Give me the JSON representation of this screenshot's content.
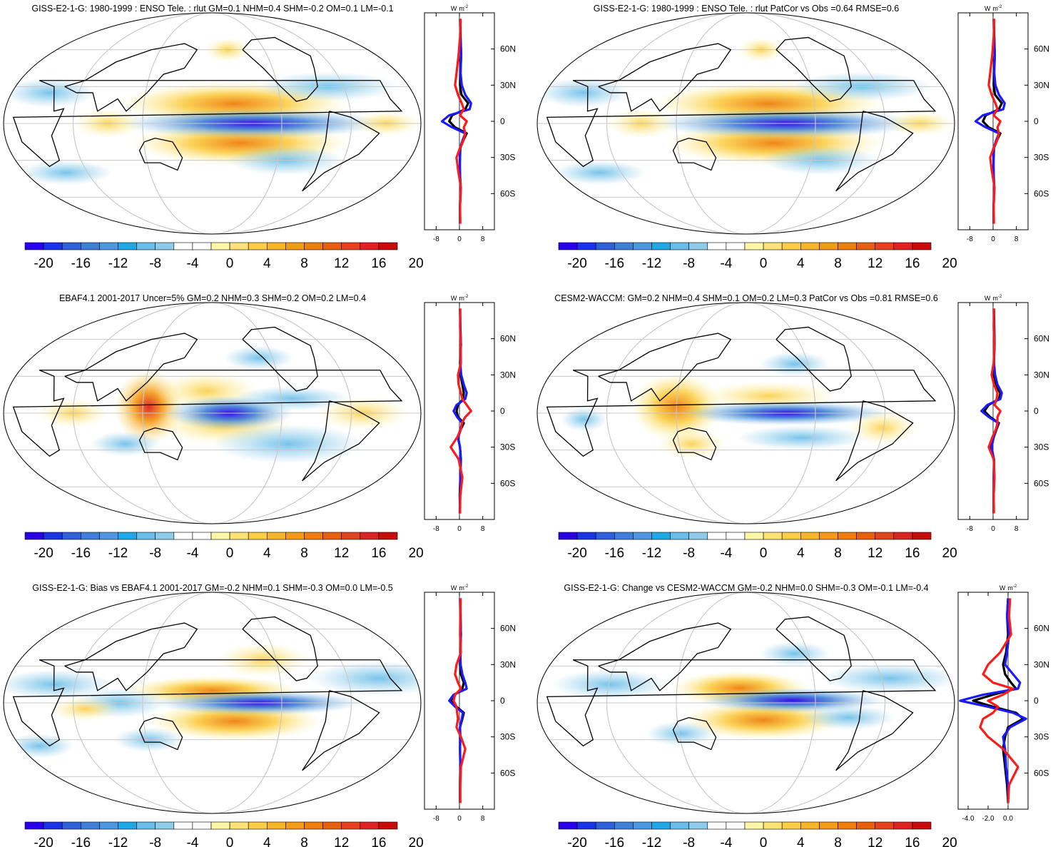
{
  "figure": {
    "unit_main": "W",
    "unit_sup": "m",
    "unit_exp": "-2"
  },
  "colorbar": {
    "tick_labels": [
      "-20",
      "-16",
      "-12",
      "-8",
      "-4",
      "0",
      "4",
      "8",
      "12",
      "16",
      "20"
    ],
    "colors": [
      "#2a00e8",
      "#1b33e6",
      "#2f5fd9",
      "#3f7fd8",
      "#4d97e0",
      "#20a8e6",
      "#68bde9",
      "#8dcbe8",
      "#ffffff",
      "#ffffff",
      "#fff6a8",
      "#fde377",
      "#fbcd45",
      "#f7b52a",
      "#f39a16",
      "#ee7f0e",
      "#e8600e",
      "#e4421c",
      "#dd2222",
      "#c80b0b"
    ]
  },
  "colors": {
    "black_line": "#000000",
    "blue_line": "#1a1aff",
    "red_line": "#ff1a1a",
    "grid": "#c8c8c8"
  },
  "chart_data": [
    {
      "type": "heatmap",
      "title": "GISS-E2-1-G: 1980-1999 : ENSO Tele. : rlut GM=0.1 NHM=0.4 SHM=-0.2 OM=0.1 LM=-0.1",
      "zonal_profile": {
        "x_ticks": [
          "-8",
          "0",
          "8"
        ],
        "x_range": [
          -12,
          12
        ],
        "y_ticks": [
          "60N",
          "30N",
          "0",
          "30S",
          "60S"
        ],
        "y_range": [
          -90,
          90
        ],
        "lat": [
          85,
          70,
          55,
          40,
          30,
          22,
          15,
          10,
          5,
          0,
          -5,
          -10,
          -15,
          -22,
          -30,
          -40,
          -55,
          -70,
          -85
        ],
        "series": [
          {
            "name": "black",
            "color": "#000000",
            "values": [
              0.3,
              0.4,
              0.6,
              0.3,
              0.2,
              0.7,
              3.0,
              2.0,
              -2.5,
              -3.5,
              -1.5,
              2.5,
              1.5,
              0.3,
              0.2,
              0.1,
              0.4,
              0.2,
              0.2
            ]
          },
          {
            "name": "blue",
            "color": "#1a1aff",
            "values": [
              0.2,
              0.3,
              0.6,
              0.4,
              0.8,
              2.0,
              4.0,
              3.5,
              -3.5,
              -6.0,
              -2.5,
              2.0,
              1.2,
              0.2,
              0.1,
              0.2,
              0.3,
              0.2,
              0.2
            ]
          },
          {
            "name": "red",
            "color": "#ff1a1a",
            "values": [
              0.4,
              0.2,
              -0.3,
              -1.0,
              -1.5,
              -0.5,
              0.8,
              1.5,
              0.2,
              2.5,
              1.5,
              2.0,
              1.5,
              0.2,
              -1.0,
              -0.5,
              0.5,
              0.2,
              0.3
            ]
          }
        ]
      }
    },
    {
      "type": "heatmap",
      "title": "GISS-E2-1-G: 1980-1999 : ENSO Tele. : rlut PatCor vs Obs =0.64 RMSE=0.6",
      "zonal_profile": {
        "x_ticks": [
          "-8",
          "0",
          "8"
        ],
        "x_range": [
          -12,
          12
        ],
        "y_ticks": [
          "60N",
          "30N",
          "0",
          "30S",
          "60S"
        ],
        "y_range": [
          -90,
          90
        ],
        "lat": [
          85,
          70,
          55,
          40,
          30,
          22,
          15,
          10,
          5,
          0,
          -5,
          -10,
          -15,
          -22,
          -30,
          -40,
          -55,
          -70,
          -85
        ],
        "series": [
          {
            "name": "black",
            "color": "#000000",
            "values": [
              0.3,
              0.4,
              0.6,
              0.3,
              0.2,
              0.7,
              3.0,
              2.0,
              -2.5,
              -3.5,
              -1.5,
              2.5,
              1.5,
              0.3,
              0.2,
              0.1,
              0.4,
              0.2,
              0.2
            ]
          },
          {
            "name": "blue",
            "color": "#1a1aff",
            "values": [
              0.2,
              0.3,
              0.6,
              0.4,
              0.8,
              2.0,
              4.0,
              3.5,
              -3.5,
              -6.0,
              -2.5,
              2.0,
              1.2,
              0.2,
              0.1,
              0.2,
              0.3,
              0.2,
              0.2
            ]
          },
          {
            "name": "red",
            "color": "#ff1a1a",
            "values": [
              0.4,
              0.2,
              -0.3,
              -1.0,
              -1.5,
              -0.5,
              0.8,
              1.5,
              0.2,
              2.5,
              1.5,
              2.0,
              1.5,
              0.2,
              -1.0,
              -0.5,
              0.5,
              0.2,
              0.3
            ]
          }
        ]
      }
    },
    {
      "type": "heatmap",
      "title": "EBAF4.1 2001-2017 Uncer=5% GM=0.2 NHM=0.3 SHM=0.2 OM=0.2 LM=0.4",
      "zonal_profile": {
        "x_ticks": [
          "-8",
          "0",
          "8"
        ],
        "x_range": [
          -12,
          12
        ],
        "y_ticks": [
          "60N",
          "30N",
          "0",
          "30S",
          "60S"
        ],
        "y_range": [
          -90,
          90
        ],
        "lat": [
          85,
          70,
          55,
          40,
          30,
          22,
          15,
          10,
          5,
          0,
          -5,
          -10,
          -15,
          -22,
          -30,
          -40,
          -55,
          -70,
          -85
        ],
        "series": [
          {
            "name": "black",
            "color": "#000000",
            "values": [
              0.2,
              0.3,
              0.5,
              0.2,
              0.4,
              1.0,
              1.5,
              1.2,
              -0.5,
              -1.0,
              -0.5,
              1.5,
              0.5,
              -0.5,
              0.2,
              0.5,
              0.3,
              0.1,
              0.2
            ]
          },
          {
            "name": "blue",
            "color": "#1a1aff",
            "values": [
              0.2,
              0.3,
              0.5,
              0.3,
              0.6,
              1.5,
              2.5,
              2.0,
              -1.0,
              -2.0,
              -0.8,
              1.0,
              0.3,
              -0.5,
              0.2,
              0.4,
              0.3,
              0.2,
              0.1
            ]
          },
          {
            "name": "red",
            "color": "#ff1a1a",
            "values": [
              0.3,
              0.2,
              0.4,
              0.5,
              -0.5,
              -0.3,
              0.5,
              1.0,
              2.5,
              4.0,
              2.0,
              0.8,
              0.5,
              -0.8,
              -3.0,
              -0.3,
              1.0,
              0.3,
              0.2
            ]
          }
        ]
      }
    },
    {
      "type": "heatmap",
      "title": "CESM2-WACCM: GM=0.2 NHM=0.4 SHM=0.1 OM=0.2 LM=0.3 PatCor vs Obs =0.81 RMSE=0.6",
      "zonal_profile": {
        "x_ticks": [
          "-8",
          "0",
          "8"
        ],
        "x_range": [
          -12,
          12
        ],
        "y_ticks": [
          "60N",
          "30N",
          "0",
          "30S",
          "60S"
        ],
        "y_range": [
          -90,
          90
        ],
        "lat": [
          85,
          70,
          55,
          40,
          30,
          22,
          15,
          10,
          5,
          0,
          -5,
          -10,
          -15,
          -22,
          -30,
          -40,
          -55,
          -70,
          -85
        ],
        "series": [
          {
            "name": "black",
            "color": "#000000",
            "values": [
              0.3,
              0.4,
              0.5,
              0.3,
              0.3,
              0.8,
              2.5,
              2.0,
              -1.5,
              -3.0,
              -1.0,
              2.0,
              1.2,
              0.2,
              -0.8,
              0.3,
              0.3,
              0.2,
              0.2
            ]
          },
          {
            "name": "blue",
            "color": "#1a1aff",
            "values": [
              0.2,
              0.3,
              0.4,
              0.3,
              0.7,
              1.5,
              3.0,
              2.5,
              -2.0,
              -4.0,
              -1.5,
              1.8,
              1.0,
              0.2,
              -0.5,
              0.3,
              0.2,
              0.2,
              0.2
            ]
          },
          {
            "name": "red",
            "color": "#ff1a1a",
            "values": [
              0.3,
              0.2,
              0.4,
              0.2,
              -0.5,
              0.3,
              1.5,
              1.2,
              0.5,
              2.5,
              1.5,
              1.5,
              1.0,
              -0.3,
              -1.5,
              0.2,
              0.5,
              0.2,
              0.3
            ]
          }
        ]
      }
    },
    {
      "type": "heatmap",
      "title": "GISS-E2-1-G: Bias vs EBAF4.1 2001-2017 GM=-0.2 NHM=0.1 SHM=-0.3 OM=0.0 LM=-0.5",
      "zonal_profile": {
        "x_ticks": [
          "-8",
          "0",
          "8"
        ],
        "x_range": [
          -12,
          12
        ],
        "y_ticks": [
          "60N",
          "30N",
          "0",
          "30S",
          "60S"
        ],
        "y_range": [
          -90,
          90
        ],
        "lat": [
          85,
          70,
          55,
          40,
          30,
          22,
          15,
          10,
          5,
          0,
          -5,
          -10,
          -15,
          -22,
          -30,
          -40,
          -55,
          -70,
          -85
        ],
        "series": [
          {
            "name": "black",
            "color": "#000000",
            "values": [
              0.3,
              0.4,
              0.5,
              0.3,
              0.2,
              0.5,
              1.5,
              1.0,
              -1.5,
              -3.0,
              -1.0,
              1.5,
              1.0,
              0.2,
              0.3,
              0.2,
              0.3,
              0.2,
              0.2
            ]
          },
          {
            "name": "blue",
            "color": "#1a1aff",
            "values": [
              0.2,
              0.3,
              0.5,
              0.3,
              0.4,
              1.0,
              2.0,
              2.5,
              -2.0,
              -3.5,
              -1.5,
              1.2,
              0.8,
              0.2,
              0.2,
              0.2,
              0.3,
              0.2,
              0.2
            ]
          },
          {
            "name": "red",
            "color": "#ff1a1a",
            "values": [
              0.4,
              0.3,
              0.2,
              0.5,
              -1.0,
              -1.5,
              -0.5,
              0.5,
              -1.5,
              -2.0,
              -1.0,
              -0.8,
              -0.5,
              -1.0,
              0.5,
              2.0,
              0.5,
              0.3,
              0.3
            ]
          }
        ]
      }
    },
    {
      "type": "heatmap",
      "title": "GISS-E2-1-G: Change vs CESM2-WACCM GM=-0.2 NHM=0.0 SHM=-0.3 OM=-0.1 LM=-0.4",
      "zonal_profile": {
        "x_ticks": [
          "-4.0",
          "-2.0",
          "0.0"
        ],
        "x_range": [
          -5,
          2
        ],
        "y_ticks": [
          "60N",
          "30N",
          "0",
          "30S",
          "60S"
        ],
        "y_range": [
          -90,
          90
        ],
        "lat": [
          85,
          70,
          55,
          40,
          30,
          22,
          15,
          10,
          5,
          0,
          -5,
          -10,
          -15,
          -22,
          -30,
          -40,
          -55,
          -70,
          -85
        ],
        "series": [
          {
            "name": "black",
            "color": "#000000",
            "values": [
              0.0,
              -0.1,
              0.0,
              -0.2,
              -0.5,
              -0.3,
              0.3,
              0.8,
              -1.5,
              -3.5,
              -1.5,
              0.8,
              1.5,
              0.0,
              -0.3,
              -0.5,
              -0.3,
              -0.1,
              0.0
            ]
          },
          {
            "name": "blue",
            "color": "#1a1aff",
            "values": [
              0.0,
              -0.1,
              0.1,
              -0.1,
              -0.3,
              0.5,
              1.2,
              1.0,
              -2.5,
              -4.8,
              -2.0,
              0.5,
              1.8,
              0.2,
              -0.5,
              -0.3,
              -0.2,
              0.0,
              0.0
            ]
          },
          {
            "name": "red",
            "color": "#ff1a1a",
            "values": [
              0.2,
              0.1,
              0.3,
              -0.8,
              -2.0,
              -2.5,
              -1.5,
              0.5,
              -0.5,
              -2.0,
              -1.0,
              -1.5,
              -2.5,
              -2.8,
              -2.0,
              -0.5,
              1.0,
              0.1,
              0.0
            ]
          }
        ]
      }
    }
  ]
}
